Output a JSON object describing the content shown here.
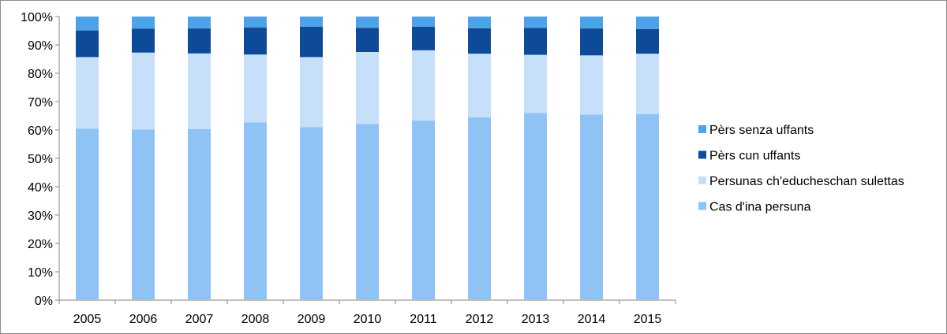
{
  "chart_data": {
    "type": "bar",
    "stacked": true,
    "normalized": true,
    "title": "",
    "xlabel": "",
    "ylabel": "",
    "ylim": [
      0,
      100
    ],
    "y_ticks": [
      0,
      10,
      20,
      30,
      40,
      50,
      60,
      70,
      80,
      90,
      100
    ],
    "y_tick_suffix": "%",
    "grid": false,
    "legend_position": "right",
    "categories": [
      "2005",
      "2006",
      "2007",
      "2008",
      "2009",
      "2010",
      "2011",
      "2012",
      "2013",
      "2014",
      "2015"
    ],
    "series": [
      {
        "name": "Cas d'ina persuna",
        "color": "#8fc3f5",
        "values": [
          60.5,
          60.2,
          60.3,
          62.7,
          61.0,
          62.1,
          63.3,
          64.5,
          66.0,
          65.4,
          65.6
        ]
      },
      {
        "name": "Persunas ch'educheschan sulettas",
        "color": "#c6e0fa",
        "values": [
          25.2,
          27.1,
          26.7,
          23.9,
          24.7,
          25.4,
          24.8,
          22.4,
          20.5,
          20.9,
          21.3
        ]
      },
      {
        "name": "Pèrs cun uffants",
        "color": "#0d4a97",
        "values": [
          9.4,
          8.4,
          8.8,
          9.5,
          10.7,
          8.5,
          8.3,
          9.0,
          9.5,
          9.5,
          8.7
        ]
      },
      {
        "name": "Pèrs senza uffants",
        "color": "#4da3ea",
        "values": [
          4.9,
          4.3,
          4.2,
          3.9,
          3.6,
          4.0,
          3.6,
          4.1,
          4.0,
          4.2,
          4.4
        ]
      }
    ]
  }
}
